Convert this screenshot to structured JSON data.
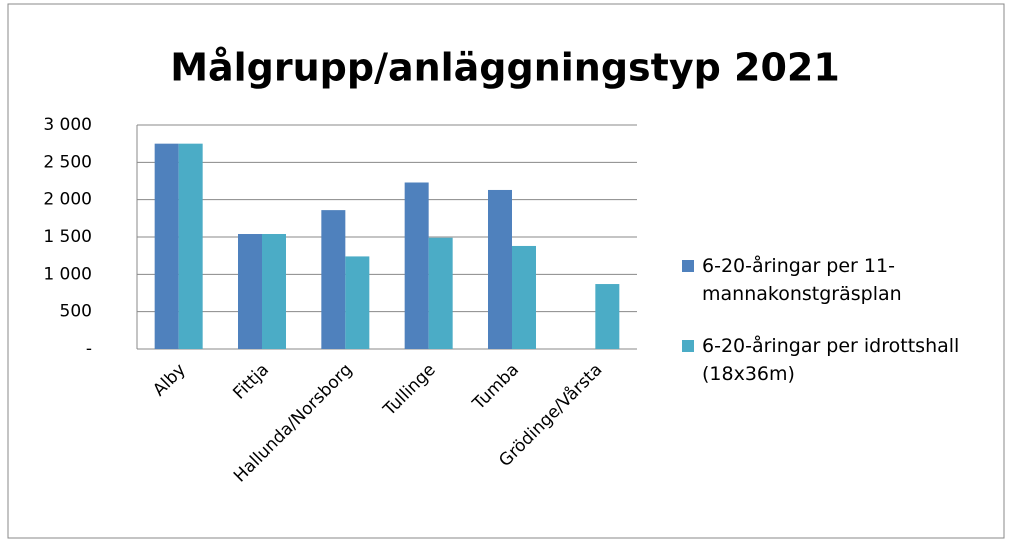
{
  "chart_data": {
    "type": "bar",
    "title": "Målgrupp/anläggningstyp 2021",
    "categories": [
      "Alby",
      "Fittja",
      "Hallunda/Norsborg",
      "Tullinge",
      "Tumba",
      "Grödinge/Vårsta"
    ],
    "series": [
      {
        "name": "6-20-åringar per 11-mannakonstgräsplan",
        "color": "#4f81bd",
        "values": [
          2750,
          1540,
          1860,
          2230,
          2130,
          null
        ]
      },
      {
        "name": "6-20-åringar per idrottshall (18x36m)",
        "color": "#4bacc6",
        "values": [
          2750,
          1540,
          1240,
          1490,
          1380,
          870
        ]
      }
    ],
    "ylim": [
      0,
      3000
    ],
    "yticks": [
      {
        "value": 0,
        "label": "-"
      },
      {
        "value": 500,
        "label": "500"
      },
      {
        "value": 1000,
        "label": "1 000"
      },
      {
        "value": 1500,
        "label": "1 500"
      },
      {
        "value": 2000,
        "label": "2 000"
      },
      {
        "value": 2500,
        "label": "2 500"
      },
      {
        "value": 3000,
        "label": "3 000"
      }
    ],
    "grid": true,
    "legend": "right"
  }
}
